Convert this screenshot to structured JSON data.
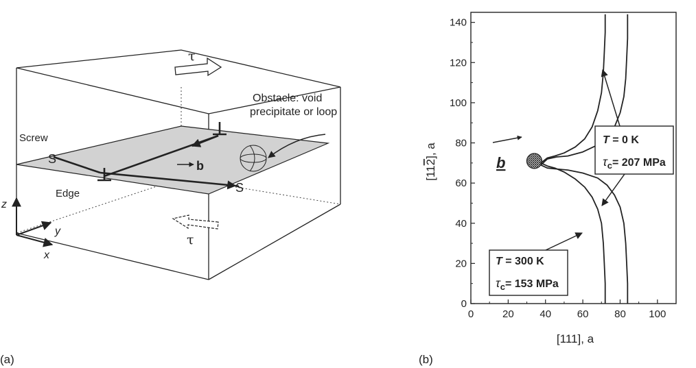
{
  "panel_a": {
    "panel_label": "(a)",
    "tau_top": "τ",
    "tau_bottom": "τ",
    "obstacle_line1": "Obstacle: void",
    "obstacle_line2": "precipitate or loop",
    "screw_label": "Screw",
    "edge_label": "Edge",
    "s_left": "S",
    "s_right": "S",
    "burgers_label": "b",
    "axis_z": "z",
    "axis_y": "y",
    "axis_x": "x"
  },
  "panel_b": {
    "panel_label": "(b)",
    "burgers_label": "b",
    "ylabel_pre": "[11",
    "ylabel_bar": "2",
    "ylabel_post": "], a",
    "xlabel": "[111], a",
    "box_0K": {
      "T_label": "T",
      "T_value": " = 0 K",
      "tau_label": "τ",
      "tau_sub": "c",
      "tau_value": "= 207 MPa"
    },
    "box_300K": {
      "T_label": "T",
      "T_value": " = 300 K",
      "tau_label": "τ",
      "tau_sub": "c",
      "tau_value": "= 153 MPa"
    }
  },
  "chart_data": {
    "type": "line",
    "xlim": [
      0,
      110
    ],
    "ylim": [
      0,
      145
    ],
    "xticks": [
      0,
      20,
      40,
      60,
      80,
      100
    ],
    "yticks": [
      0,
      20,
      40,
      60,
      80,
      100,
      120,
      140
    ],
    "obstacle_center": [
      34,
      71
    ],
    "series": [
      {
        "label_ref": "box_0K",
        "x": [
          84,
          84,
          83.5,
          83,
          82,
          80,
          77,
          73,
          68,
          60,
          52,
          46,
          41,
          37.5,
          41,
          46,
          52,
          60,
          68,
          73,
          77,
          80,
          82,
          83,
          83.5,
          84,
          84
        ],
        "y": [
          0,
          10,
          20,
          30,
          40,
          48,
          54,
          59,
          62.5,
          65,
          66.5,
          67,
          67.5,
          69,
          72,
          73,
          73.5,
          75.5,
          79,
          83,
          88,
          95,
          103,
          112,
          122,
          132,
          144
        ]
      },
      {
        "label_ref": "box_300K",
        "x": [
          72,
          72,
          71.5,
          71,
          70,
          68,
          65,
          61,
          56,
          50,
          45,
          41,
          37.5,
          41,
          45,
          50,
          56,
          61,
          65,
          68,
          70,
          71,
          71.5,
          72,
          72
        ],
        "y": [
          0,
          10,
          20,
          30,
          40,
          47,
          53,
          58,
          62,
          65.5,
          67.5,
          68.5,
          70,
          72.5,
          73.5,
          75,
          78,
          82,
          88,
          96,
          105,
          115,
          125,
          135,
          144
        ]
      }
    ]
  }
}
